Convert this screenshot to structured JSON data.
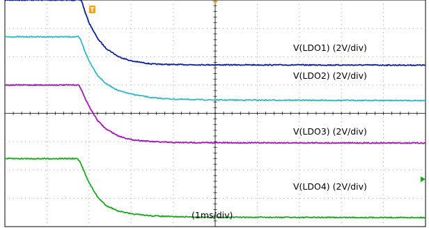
{
  "chart_data": {
    "type": "line",
    "title": "",
    "xlabel": "(1ms/div)",
    "ylabel": "",
    "x_divisions": 10,
    "y_divisions": 8,
    "x_range_div": [
      0,
      10
    ],
    "y_range_div": [
      -4,
      4
    ],
    "grid": true,
    "trigger_marker": "T",
    "series": [
      {
        "name": "V(LDO1) (2V/div)",
        "color": "#0b1f9e",
        "points": [
          [
            0,
            4.0
          ],
          [
            1.8,
            4.0
          ],
          [
            1.83,
            3.95
          ],
          [
            1.9,
            3.6
          ],
          [
            2.0,
            3.2
          ],
          [
            2.2,
            2.65
          ],
          [
            2.4,
            2.3
          ],
          [
            2.7,
            2.0
          ],
          [
            3.0,
            1.85
          ],
          [
            3.5,
            1.74
          ],
          [
            4.0,
            1.72
          ],
          [
            5.0,
            1.71
          ],
          [
            10,
            1.7
          ]
        ]
      },
      {
        "name": "V(LDO2) (2V/div)",
        "color": "#2fb8c8",
        "points": [
          [
            0,
            2.7
          ],
          [
            1.75,
            2.7
          ],
          [
            1.8,
            2.6
          ],
          [
            1.9,
            2.2
          ],
          [
            2.0,
            1.85
          ],
          [
            2.2,
            1.35
          ],
          [
            2.4,
            1.05
          ],
          [
            2.7,
            0.8
          ],
          [
            3.0,
            0.68
          ],
          [
            3.5,
            0.55
          ],
          [
            4.0,
            0.5
          ],
          [
            5.0,
            0.47
          ],
          [
            10,
            0.45
          ]
        ]
      },
      {
        "name": "V(LDO3) (2V/div)",
        "color": "#a414b8",
        "points": [
          [
            0,
            1.0
          ],
          [
            1.75,
            1.0
          ],
          [
            1.8,
            0.9
          ],
          [
            1.9,
            0.55
          ],
          [
            2.0,
            0.25
          ],
          [
            2.2,
            -0.25
          ],
          [
            2.4,
            -0.55
          ],
          [
            2.7,
            -0.8
          ],
          [
            3.0,
            -0.93
          ],
          [
            3.5,
            -1.0
          ],
          [
            4.0,
            -1.03
          ],
          [
            5.0,
            -1.04
          ],
          [
            10,
            -1.05
          ]
        ]
      },
      {
        "name": "V(LDO4) (2V/div)",
        "color": "#1aa81a",
        "points": [
          [
            0,
            -1.6
          ],
          [
            1.72,
            -1.6
          ],
          [
            1.78,
            -1.7
          ],
          [
            1.9,
            -2.1
          ],
          [
            2.0,
            -2.45
          ],
          [
            2.2,
            -2.95
          ],
          [
            2.4,
            -3.25
          ],
          [
            2.7,
            -3.45
          ],
          [
            3.0,
            -3.55
          ],
          [
            3.5,
            -3.62
          ],
          [
            4.0,
            -3.65
          ],
          [
            5.0,
            -3.67
          ],
          [
            10,
            -3.68
          ]
        ]
      }
    ],
    "annotations": [
      {
        "text": "V(LDO1) (2V/div)",
        "series": 0
      },
      {
        "text": "V(LDO2) (2V/div)",
        "series": 1
      },
      {
        "text": "V(LDO3) (2V/div)",
        "series": 2
      },
      {
        "text": "V(LDO4) (2V/div)",
        "series": 3
      }
    ],
    "colors": {
      "grid": "#9a9a9a",
      "axis": "#000000",
      "trigger": "#f0a020",
      "level_marker": "#1aa81a"
    }
  }
}
